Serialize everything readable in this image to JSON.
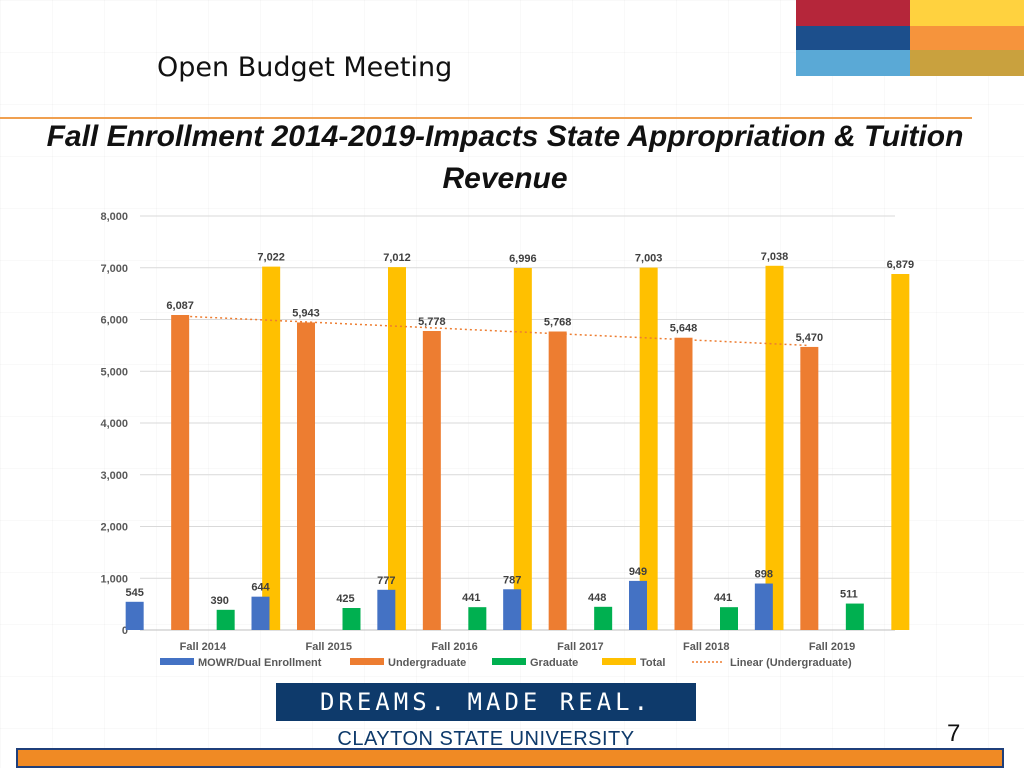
{
  "header": {
    "title": "Open Budget Meeting"
  },
  "slide": {
    "title": "Fall Enrollment 2014-2019-Impacts State Appropriation & Tuition Revenue",
    "page_number": "7"
  },
  "branding": {
    "tagline": "DREAMS. MADE REAL.",
    "university": "CLAYTON STATE UNIVERSITY"
  },
  "palette": {
    "blocks": [
      {
        "name": "red",
        "color": "#b5263a"
      },
      {
        "name": "yellow",
        "color": "#ffd23f"
      },
      {
        "name": "navy",
        "color": "#1c4f8c"
      },
      {
        "name": "orange",
        "color": "#f6943c"
      },
      {
        "name": "lightblue",
        "color": "#5aa9d6"
      },
      {
        "name": "gold",
        "color": "#c9a13e"
      }
    ],
    "rule": "#f0a050"
  },
  "chart_data": {
    "type": "bar",
    "categories": [
      "Fall 2014",
      "Fall 2015",
      "Fall 2016",
      "Fall 2017",
      "Fall 2018",
      "Fall 2019"
    ],
    "series": [
      {
        "name": "MOWR/Dual Enrollment",
        "color": "#4472c4",
        "values": [
          545,
          644,
          777,
          787,
          949,
          898
        ]
      },
      {
        "name": "Undergraduate",
        "color": "#ed7d31",
        "values": [
          6087,
          5943,
          5778,
          5768,
          5648,
          5470
        ]
      },
      {
        "name": "Graduate",
        "color": "#00b050",
        "values": [
          390,
          425,
          441,
          448,
          441,
          511
        ]
      },
      {
        "name": "Total",
        "color": "#ffc000",
        "values": [
          7022,
          7012,
          6996,
          7003,
          7038,
          6879
        ]
      }
    ],
    "trendline": {
      "name": "Linear (Undergraduate)",
      "of_series": "Undergraduate",
      "style": "dotted",
      "color": "#ed7d31"
    },
    "ylim": [
      0,
      8000
    ],
    "yticks": [
      "0",
      "1,000",
      "2,000",
      "3,000",
      "4,000",
      "5,000",
      "6,000",
      "7,000",
      "8,000"
    ],
    "grid": true,
    "legend": "bottom",
    "title": "",
    "xlabel": "",
    "ylabel": ""
  }
}
